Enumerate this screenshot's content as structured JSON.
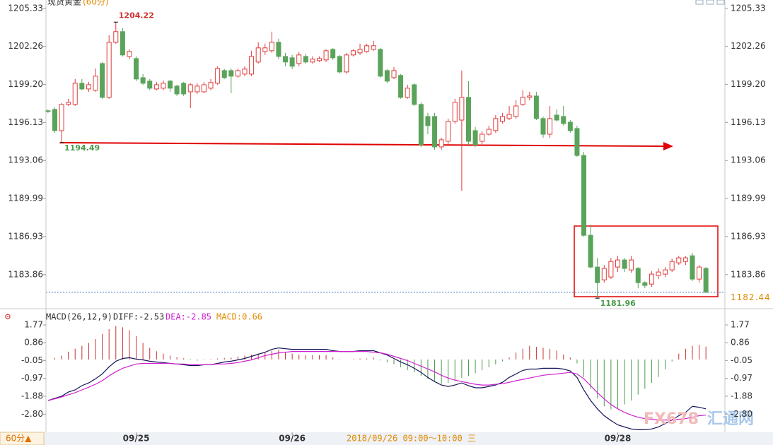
{
  "title": "现货黄金",
  "subtitle": "(60分)",
  "period_button": "60分▲",
  "hover_time": "2018/09/26 09:00～10:00 三",
  "watermark": {
    "brand": "FX678",
    "name": "汇通网"
  },
  "chart_data": [
    {
      "type": "candlestick",
      "up_color": "#e03c3c",
      "down_color": "#5aa35a",
      "xlim": [
        -0.3,
        99.8
      ],
      "ylim": [
        1181.4,
        1206.0
      ],
      "yticks": [
        1183.86,
        1186.93,
        1189.99,
        1193.06,
        1196.13,
        {
          "value": 1199.2,
          "label": "1199.20"
        },
        1202.26,
        1205.33
      ],
      "grid": false,
      "last_price": 1182.44,
      "last_price_color": "#e08a00",
      "annotations": [
        {
          "label": "1204.22",
          "x": 10,
          "y": 1204.22,
          "color": "#d03030"
        },
        {
          "label": "1194.49",
          "x": 2,
          "y": 1194.49,
          "color": "#4a9a4a"
        },
        {
          "label": "1181.96",
          "x": 81,
          "y": 1181.96,
          "color": "#4a9a4a"
        }
      ],
      "open": [
        1197.07,
        1197.18,
        1195.47,
        1197.58,
        1197.58,
        1199.29,
        1198.83,
        1198.72,
        1200.88,
        1198.15,
        1202.59,
        1203.45,
        1201.45,
        1201.28,
        1199.74,
        1199.46,
        1198.83,
        1198.89,
        1199.46,
        1199.06,
        1199.29,
        1198.6,
        1198.6,
        1198.6,
        1198.89,
        1199.29,
        1200.31,
        1200.31,
        1199.86,
        1200.03,
        1200.03,
        1201.0,
        1201.85,
        1201.91,
        1202.59,
        1201.45,
        1201.34,
        1200.88,
        1201.45,
        1201.0,
        1201.11,
        1201.17,
        1202.02,
        1201.45,
        1200.2,
        1201.57,
        1201.74,
        1201.85,
        1202.02,
        1202.02,
        1200.31,
        1199.74,
        1199.92,
        1198.15,
        1199.17,
        1197.58,
        1196.61,
        1196.61,
        1194.16,
        1194.61,
        1196.21,
        1196.32,
        1198.15,
        1195.47,
        1194.61,
        1195.18,
        1195.47,
        1196.21,
        1196.44,
        1196.61,
        1197.58,
        1198.15,
        1198.26,
        1196.44,
        1195.18,
        1196.72,
        1196.61,
        1196.15,
        1195.64,
        1193.47,
        1187.03,
        1184.47,
        1183.44,
        1183.67,
        1184.47,
        1185.04,
        1184.24,
        1184.36,
        1183.21,
        1183.1,
        1183.79,
        1183.9,
        1184.24,
        1184.81,
        1184.92,
        1185.38,
        1183.5,
        1184.36
      ],
      "high": [
        1197.18,
        1197.35,
        1197.69,
        1198.04,
        1199.63,
        1199.63,
        1199.4,
        1200.48,
        1201.0,
        1203.16,
        1204.22,
        1203.73,
        1202.02,
        1201.45,
        1200.03,
        1199.63,
        1199.4,
        1199.51,
        1199.57,
        1199.17,
        1199.4,
        1199.29,
        1199.29,
        1199.4,
        1199.63,
        1200.66,
        1200.43,
        1200.48,
        1200.48,
        1200.66,
        1201.91,
        1202.59,
        1202.48,
        1203.45,
        1202.88,
        1201.74,
        1201.57,
        1201.8,
        1201.68,
        1201.45,
        1201.45,
        1202.02,
        1202.14,
        1201.57,
        1201.74,
        1202.02,
        1202.48,
        1202.48,
        1202.71,
        1202.14,
        1200.43,
        1200.6,
        1200.03,
        1199.17,
        1199.29,
        1197.75,
        1196.9,
        1196.9,
        1194.9,
        1196.44,
        1198.04,
        1200.31,
        1199.46,
        1195.75,
        1195.41,
        1195.87,
        1196.72,
        1196.9,
        1197.46,
        1197.92,
        1198.72,
        1198.6,
        1198.6,
        1196.61,
        1197.46,
        1197.18,
        1197.46,
        1196.32,
        1195.87,
        1193.76,
        1187.88,
        1185.21,
        1184.64,
        1185.21,
        1185.38,
        1185.21,
        1185.38,
        1184.47,
        1183.33,
        1184.13,
        1184.36,
        1184.47,
        1185.15,
        1185.38,
        1185.38,
        1185.61,
        1184.64,
        1184.47
      ],
      "low": [
        1196.9,
        1195.3,
        1194.49,
        1197.46,
        1197.46,
        1198.72,
        1198.6,
        1198.6,
        1198.04,
        1198.04,
        1202.48,
        1201.45,
        1201.23,
        1199.46,
        1199.17,
        1198.72,
        1198.72,
        1198.72,
        1198.6,
        1198.26,
        1198.26,
        1197.29,
        1198.43,
        1198.49,
        1198.72,
        1199.17,
        1199.63,
        1198.49,
        1199.74,
        1199.86,
        1199.86,
        1200.88,
        1201.57,
        1201.74,
        1201.23,
        1200.66,
        1200.43,
        1200.66,
        1200.88,
        1200.88,
        1201.0,
        1201.0,
        1201.17,
        1200.08,
        1200.08,
        1201.45,
        1201.57,
        1201.74,
        1201.91,
        1199.74,
        1199.29,
        1199.63,
        1198.04,
        1198.04,
        1197.46,
        1194.16,
        1195.18,
        1193.93,
        1193.93,
        1194.38,
        1196.04,
        1190.62,
        1194.33,
        1194.16,
        1194.38,
        1195.07,
        1195.3,
        1196.04,
        1196.32,
        1196.44,
        1197.46,
        1197.92,
        1196.32,
        1194.9,
        1194.9,
        1196.21,
        1195.87,
        1195.3,
        1193.36,
        1186.92,
        1184.36,
        1181.96,
        1183.21,
        1183.5,
        1184.07,
        1184.07,
        1184.01,
        1182.76,
        1182.76,
        1182.87,
        1183.5,
        1183.67,
        1184.07,
        1184.64,
        1184.64,
        1183.33,
        1183.21,
        1182.44
      ],
      "close": [
        1197.01,
        1195.47,
        1197.58,
        1197.75,
        1199.29,
        1198.83,
        1199.17,
        1199.86,
        1198.15,
        1202.59,
        1203.45,
        1201.57,
        1201.85,
        1199.63,
        1199.29,
        1198.89,
        1199.17,
        1199.29,
        1198.89,
        1198.43,
        1198.43,
        1199.17,
        1199.06,
        1199.17,
        1199.35,
        1200.48,
        1199.74,
        1199.86,
        1200.31,
        1200.43,
        1201.45,
        1202.14,
        1202.14,
        1202.59,
        1201.45,
        1201.0,
        1200.66,
        1201.57,
        1201.0,
        1201.23,
        1201.28,
        1201.91,
        1201.34,
        1200.2,
        1201.57,
        1201.91,
        1202.02,
        1202.31,
        1202.31,
        1199.86,
        1199.46,
        1200.31,
        1198.15,
        1198.89,
        1197.58,
        1194.33,
        1195.87,
        1194.16,
        1194.73,
        1196.21,
        1197.75,
        1198.15,
        1194.61,
        1194.33,
        1195.18,
        1195.58,
        1196.44,
        1196.61,
        1196.78,
        1197.46,
        1198.15,
        1198.26,
        1196.44,
        1195.18,
        1196.44,
        1196.32,
        1196.04,
        1195.47,
        1193.47,
        1187.03,
        1184.47,
        1183.21,
        1184.36,
        1184.92,
        1185.04,
        1184.36,
        1185.04,
        1183.21,
        1182.99,
        1183.9,
        1184.07,
        1184.24,
        1184.92,
        1185.21,
        1185.21,
        1183.5,
        1184.47,
        1182.44
      ]
    },
    {
      "type": "line",
      "title": "MACD(26,12,9)",
      "xlim": [
        -0.3,
        99.8
      ],
      "ylim": [
        -3.73,
        2.06
      ],
      "yticks": [
        1.77,
        0.86,
        -0.05,
        -0.97,
        -1.88,
        {
          "value": -2.8,
          "label": "-2.80"
        }
      ],
      "xticks": [
        {
          "value": 13,
          "label": "09/25"
        },
        {
          "value": 36,
          "label": "09/26"
        },
        {
          "value": 84,
          "label": "09/28"
        }
      ],
      "grid": false,
      "series": [
        {
          "name": "DIFF:-2.53",
          "color": "#14145a",
          "values": [
            -2.1,
            -1.99,
            -1.88,
            -1.67,
            -1.56,
            -1.34,
            -1.2,
            -0.99,
            -0.74,
            -0.38,
            -0.09,
            0.05,
            0.09,
            0.02,
            -0.02,
            -0.09,
            -0.13,
            -0.16,
            -0.2,
            -0.23,
            -0.27,
            -0.31,
            -0.31,
            -0.27,
            -0.27,
            -0.2,
            -0.13,
            -0.09,
            -0.02,
            0.05,
            0.16,
            0.27,
            0.37,
            0.52,
            0.59,
            0.55,
            0.52,
            0.52,
            0.52,
            0.52,
            0.52,
            0.52,
            0.45,
            0.41,
            0.41,
            0.41,
            0.45,
            0.45,
            0.45,
            0.34,
            0.23,
            0.05,
            -0.13,
            -0.27,
            -0.45,
            -0.66,
            -0.92,
            -1.13,
            -1.31,
            -1.38,
            -1.31,
            -1.2,
            -1.34,
            -1.45,
            -1.45,
            -1.38,
            -1.31,
            -1.17,
            -0.92,
            -0.74,
            -0.56,
            -0.49,
            -0.49,
            -0.45,
            -0.45,
            -0.45,
            -0.49,
            -0.59,
            -0.92,
            -1.56,
            -2.1,
            -2.53,
            -2.88,
            -3.13,
            -3.35,
            -3.46,
            -3.56,
            -3.6,
            -3.6,
            -3.56,
            -3.46,
            -3.28,
            -3.1,
            -2.88,
            -2.71,
            -2.4,
            -2.45,
            -2.53
          ]
        },
        {
          "name": "DEA:-2.85",
          "color": "#d020d0",
          "values": [
            -2.1,
            -2.02,
            -1.92,
            -1.81,
            -1.7,
            -1.56,
            -1.42,
            -1.27,
            -1.09,
            -0.84,
            -0.63,
            -0.45,
            -0.34,
            -0.23,
            -0.2,
            -0.2,
            -0.2,
            -0.2,
            -0.2,
            -0.23,
            -0.23,
            -0.27,
            -0.27,
            -0.27,
            -0.27,
            -0.23,
            -0.23,
            -0.2,
            -0.16,
            -0.09,
            -0.02,
            0.09,
            0.2,
            0.27,
            0.34,
            0.37,
            0.41,
            0.41,
            0.41,
            0.41,
            0.41,
            0.41,
            0.41,
            0.41,
            0.41,
            0.41,
            0.41,
            0.41,
            0.37,
            0.34,
            0.27,
            0.16,
            0.05,
            -0.06,
            -0.2,
            -0.34,
            -0.49,
            -0.63,
            -0.81,
            -0.95,
            -1.06,
            -1.13,
            -1.2,
            -1.27,
            -1.31,
            -1.31,
            -1.27,
            -1.24,
            -1.17,
            -1.09,
            -1.02,
            -0.95,
            -0.88,
            -0.81,
            -0.77,
            -0.74,
            -0.7,
            -0.66,
            -0.74,
            -0.99,
            -1.34,
            -1.7,
            -2.02,
            -2.31,
            -2.53,
            -2.71,
            -2.85,
            -2.96,
            -3.03,
            -3.06,
            -3.1,
            -3.1,
            -3.1,
            -3.06,
            -3.03,
            -2.96,
            -2.88,
            -2.85
          ]
        }
      ],
      "bars": {
        "name": "MACD:0.66",
        "up_color": "#c83030",
        "down_color": "#4a9a4a",
        "values": [
          0.0,
          0.08,
          0.2,
          0.4,
          0.55,
          0.7,
          0.85,
          1.05,
          1.3,
          1.55,
          1.72,
          1.65,
          1.5,
          1.2,
          0.85,
          0.6,
          0.42,
          0.3,
          0.2,
          0.12,
          0.06,
          -0.04,
          -0.06,
          -0.03,
          0.02,
          0.05,
          0.08,
          0.1,
          0.15,
          0.2,
          0.25,
          0.3,
          0.35,
          0.45,
          0.5,
          0.4,
          0.3,
          0.25,
          0.22,
          0.22,
          0.22,
          0.22,
          0.1,
          0.02,
          0.0,
          0.02,
          0.05,
          0.05,
          0.1,
          -0.05,
          -0.15,
          -0.25,
          -0.4,
          -0.55,
          -0.65,
          -0.85,
          -1.0,
          -1.1,
          -1.25,
          -1.2,
          -1.1,
          -0.95,
          -0.85,
          -0.7,
          -0.55,
          -0.4,
          -0.25,
          -0.1,
          0.1,
          0.35,
          0.55,
          0.7,
          0.65,
          0.6,
          0.55,
          0.45,
          0.25,
          0.1,
          -0.2,
          -0.9,
          -1.5,
          -2.0,
          -2.4,
          -2.55,
          -2.5,
          -2.3,
          -2.1,
          -1.8,
          -1.5,
          -1.2,
          -0.9,
          -0.5,
          -0.1,
          0.3,
          0.55,
          0.7,
          0.75,
          0.66
        ]
      }
    }
  ]
}
